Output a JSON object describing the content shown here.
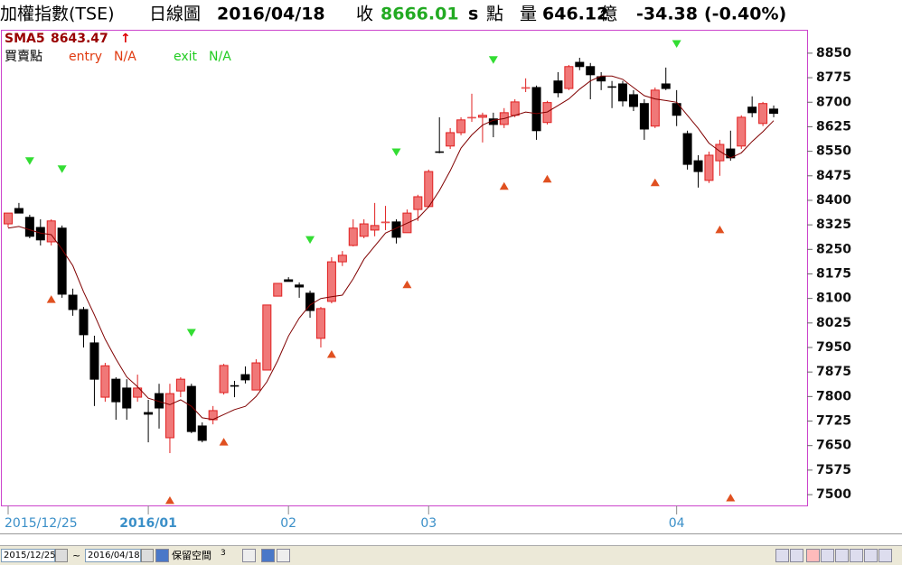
{
  "header": {
    "title": "加權指數(TSE)",
    "view": "日線圖",
    "date": "2016/04/18",
    "close_label": "收",
    "close": "8666.01",
    "close_suffix": "s",
    "close_unit": "點",
    "volume_label": "量",
    "volume": "646.12",
    "volume_unit": "億",
    "change": "-34.38",
    "change_pct": "(-0.40%)"
  },
  "chart_data": {
    "type": "candlestick",
    "categories": [
      "2015/12/25",
      null,
      null,
      null,
      null,
      null,
      null,
      null,
      null,
      null,
      null,
      null,
      null,
      "2016/01",
      null,
      null,
      null,
      null,
      null,
      null,
      null,
      null,
      null,
      null,
      null,
      null,
      "02",
      null,
      null,
      null,
      null,
      null,
      null,
      null,
      null,
      null,
      null,
      null,
      null,
      "03",
      null,
      null,
      null,
      null,
      null,
      null,
      null,
      null,
      null,
      null,
      null,
      null,
      null,
      null,
      null,
      null,
      null,
      null,
      null,
      null,
      null,
      null,
      "04",
      null,
      null,
      null,
      null,
      null,
      null,
      null,
      null,
      null
    ],
    "open": [
      8328,
      8375,
      8348,
      8317,
      8273,
      8315,
      8110,
      8066,
      7964,
      7798,
      7853,
      7826,
      7798,
      7751,
      7809,
      7674,
      7817,
      7831,
      7710,
      7729,
      7812,
      7834,
      7867,
      7820,
      7881,
      8107,
      8157,
      8141,
      8116,
      7978,
      8091,
      8212,
      8262,
      8290,
      8309,
      8331,
      8334,
      8301,
      8372,
      8381,
      8549,
      8566,
      8607,
      8652,
      8654,
      8649,
      8632,
      8660,
      8743,
      8745,
      8638,
      8765,
      8742,
      8822,
      8809,
      8778,
      8748,
      8756,
      8723,
      8696,
      8627,
      8756,
      8696,
      8604,
      8521,
      8461,
      8521,
      8557,
      8566,
      8685,
      8635,
      8679
    ],
    "high": [
      8361,
      8392,
      8356,
      8342,
      8342,
      8323,
      8130,
      8074,
      7986,
      7903,
      7859,
      7853,
      7867,
      7790,
      7839,
      7839,
      7859,
      7839,
      7721,
      7771,
      7900,
      7848,
      7892,
      7914,
      8080,
      8146,
      8165,
      8149,
      8124,
      8074,
      8226,
      8245,
      8342,
      8342,
      8392,
      8383,
      8342,
      8372,
      8417,
      8494,
      8654,
      8621,
      8654,
      8726,
      8668,
      8668,
      8682,
      8709,
      8773,
      8751,
      8704,
      8792,
      8814,
      8836,
      8820,
      8792,
      8765,
      8765,
      8737,
      8709,
      8745,
      8806,
      8737,
      8613,
      8538,
      8549,
      8585,
      8613,
      8660,
      8718,
      8701,
      8690
    ],
    "low": [
      8317,
      8361,
      8284,
      8262,
      8262,
      8102,
      8047,
      7950,
      7771,
      7784,
      7729,
      7729,
      7784,
      7660,
      7702,
      7627,
      7798,
      7688,
      7660,
      7715,
      7806,
      7798,
      7840,
      7820,
      7881,
      8107,
      8152,
      8102,
      8041,
      7950,
      8085,
      8199,
      8259,
      8284,
      8290,
      8309,
      8268,
      8301,
      8337,
      8378,
      8544,
      8557,
      8599,
      8640,
      8577,
      8593,
      8621,
      8654,
      8731,
      8585,
      8632,
      8715,
      8737,
      8798,
      8709,
      8737,
      8682,
      8687,
      8673,
      8585,
      8621,
      8737,
      8627,
      8494,
      8439,
      8453,
      8475,
      8521,
      8557,
      8654,
      8627,
      8654
    ],
    "close": [
      8361,
      8361,
      8290,
      8279,
      8337,
      8113,
      8066,
      7989,
      7853,
      7894,
      7784,
      7765,
      7826,
      7746,
      7765,
      7809,
      7853,
      7693,
      7666,
      7757,
      7895,
      7831,
      7851,
      7903,
      8080,
      8146,
      8152,
      8135,
      8063,
      8069,
      8212,
      8232,
      8315,
      8328,
      8323,
      8334,
      8287,
      8361,
      8411,
      8488,
      8546,
      8607,
      8646,
      8654,
      8660,
      8632,
      8668,
      8701,
      8745,
      8613,
      8699,
      8729,
      8809,
      8809,
      8784,
      8765,
      8745,
      8704,
      8687,
      8618,
      8737,
      8742,
      8660,
      8510,
      8488,
      8538,
      8571,
      8530,
      8654,
      8668,
      8696,
      8666.01
    ],
    "up_color": "#f07878",
    "up_edge": "#e02020",
    "down_color": "#000000",
    "sma": {
      "name": "SMA5",
      "color": "#800000",
      "arrow": "↑",
      "values": [
        8315,
        8320,
        8310,
        8300,
        8295,
        8250,
        8200,
        8120,
        8050,
        7975,
        7915,
        7860,
        7830,
        7795,
        7785,
        7775,
        7790,
        7770,
        7735,
        7730,
        7745,
        7760,
        7770,
        7800,
        7845,
        7910,
        7985,
        8040,
        8080,
        8100,
        8105,
        8110,
        8160,
        8220,
        8260,
        8300,
        8315,
        8330,
        8345,
        8380,
        8430,
        8490,
        8560,
        8600,
        8630,
        8645,
        8650,
        8660,
        8670,
        8665,
        8670,
        8690,
        8710,
        8740,
        8765,
        8780,
        8780,
        8770,
        8745,
        8720,
        8710,
        8705,
        8700,
        8660,
        8620,
        8575,
        8550,
        8530,
        8545,
        8580,
        8610,
        8643.47
      ]
    },
    "signals_label": "買賣點",
    "entry": {
      "name": "entry",
      "status": "N/A",
      "color": "#e05020",
      "values": [
        null,
        null,
        null,
        null,
        8096,
        null,
        null,
        null,
        null,
        null,
        null,
        null,
        null,
        null,
        null,
        7481,
        null,
        null,
        null,
        null,
        7660,
        null,
        null,
        null,
        null,
        null,
        null,
        null,
        null,
        null,
        7928,
        null,
        null,
        null,
        null,
        null,
        null,
        8141,
        null,
        null,
        null,
        null,
        null,
        null,
        null,
        null,
        8442,
        null,
        null,
        null,
        8464,
        null,
        null,
        null,
        null,
        null,
        null,
        null,
        null,
        null,
        8453,
        null,
        null,
        null,
        null,
        null,
        8309,
        7489,
        null,
        null,
        null,
        null
      ]
    },
    "exit": {
      "name": "exit",
      "status": "N/A",
      "color": "#33dd33",
      "values": [
        null,
        null,
        8522,
        null,
        null,
        8497,
        null,
        null,
        null,
        null,
        null,
        null,
        null,
        null,
        null,
        null,
        null,
        7997,
        null,
        null,
        null,
        null,
        null,
        null,
        null,
        null,
        null,
        null,
        8281,
        null,
        null,
        null,
        null,
        null,
        null,
        null,
        8549,
        null,
        null,
        null,
        null,
        null,
        null,
        null,
        null,
        8831,
        null,
        null,
        null,
        null,
        null,
        null,
        null,
        null,
        null,
        null,
        null,
        null,
        null,
        null,
        null,
        null,
        8880,
        null,
        null,
        null,
        null,
        null,
        null,
        null,
        null,
        null
      ]
    },
    "ylim": [
      7467,
      8916
    ],
    "yticks": [
      7500,
      7575,
      7650,
      7725,
      7800,
      7875,
      7950,
      8025,
      8100,
      8175,
      8250,
      8325,
      8400,
      8475,
      8550,
      8625,
      8700,
      8775,
      8850
    ]
  },
  "toolbar": {
    "start": "2015/12/25",
    "sep": "~",
    "end": "2016/04/18",
    "reserve_label": "保留空間",
    "reserve": "3"
  }
}
